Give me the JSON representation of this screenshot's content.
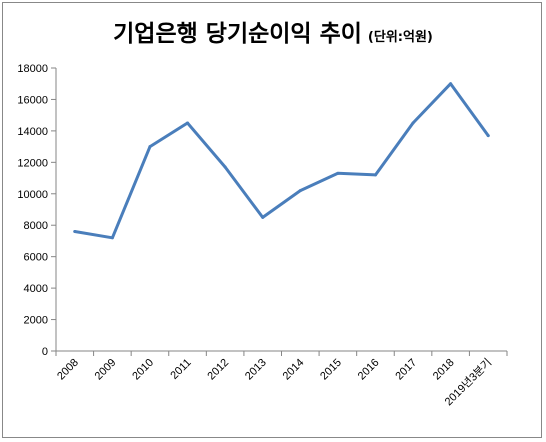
{
  "chart_data": {
    "type": "line",
    "title": "기업은행 당기순이익 추이",
    "subtitle": "(단위:억원)",
    "categories": [
      "2008",
      "2009",
      "2010",
      "2011",
      "2012",
      "2013",
      "2014",
      "2015",
      "2016",
      "2017",
      "2018",
      "2019년3분기"
    ],
    "series": [
      {
        "values": [
          7600,
          7200,
          13000,
          14500,
          11700,
          8500,
          10200,
          11300,
          11200,
          14500,
          17000,
          13700
        ]
      }
    ],
    "ylim": [
      0,
      18000
    ],
    "yticks": [
      0,
      2000,
      4000,
      6000,
      8000,
      10000,
      12000,
      14000,
      16000,
      18000
    ],
    "grid": false,
    "line_color": "#4a7ebb"
  }
}
